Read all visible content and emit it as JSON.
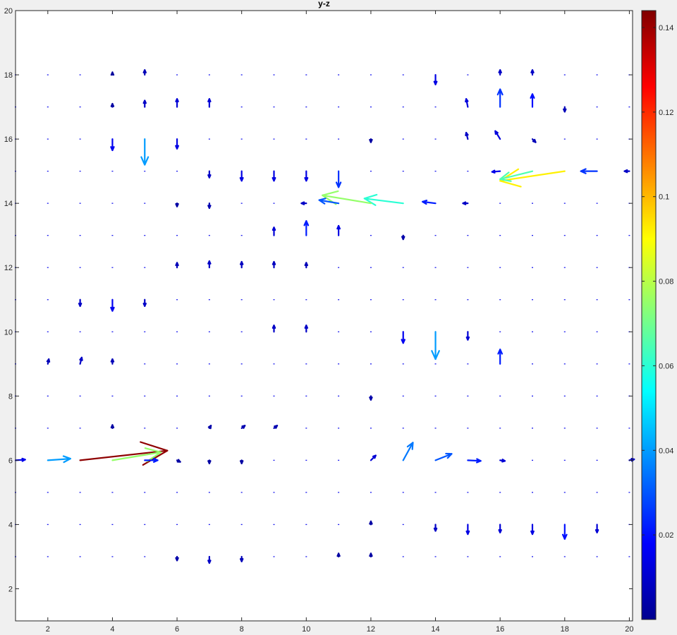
{
  "chart_data": {
    "type": "quiver",
    "title": "y-z",
    "xlabel": "",
    "ylabel": "",
    "xlim": [
      1,
      20.1
    ],
    "ylim": [
      1,
      20
    ],
    "xticks": [
      "2",
      "4",
      "6",
      "8",
      "10",
      "12",
      "14",
      "16",
      "18",
      "20"
    ],
    "yticks": [
      "2",
      "4",
      "6",
      "8",
      "10",
      "12",
      "14",
      "16",
      "18",
      "20"
    ],
    "colorbar": {
      "colormap": "jet",
      "range": [
        0,
        0.144
      ],
      "ticks": [
        "0.02",
        "0.04",
        "0.06",
        "0.08",
        "0.1",
        "0.12",
        "0.14"
      ]
    },
    "arrows": [
      {
        "x": 3,
        "y": 6,
        "u": 2.7,
        "v": 0.3,
        "m": 0.142
      },
      {
        "x": 4,
        "y": 6,
        "u": 1.5,
        "v": 0.25,
        "m": 0.075
      },
      {
        "x": 2,
        "y": 6,
        "u": 0.7,
        "v": 0.05,
        "m": 0.04
      },
      {
        "x": 5,
        "y": 6,
        "u": 0.4,
        "v": 0.0,
        "m": 0.022
      },
      {
        "x": 1,
        "y": 6,
        "u": 0.3,
        "v": 0.02,
        "m": 0.015
      },
      {
        "x": 13,
        "y": 6,
        "u": 0.3,
        "v": 0.55,
        "m": 0.035
      },
      {
        "x": 14,
        "y": 6,
        "u": 0.5,
        "v": 0.2,
        "m": 0.03
      },
      {
        "x": 15,
        "y": 6,
        "u": 0.4,
        "v": -0.02,
        "m": 0.022
      },
      {
        "x": 16,
        "y": 6,
        "u": 0.15,
        "v": -0.02,
        "m": 0.012
      },
      {
        "x": 12,
        "y": 6,
        "u": 0.15,
        "v": 0.15,
        "m": 0.012
      },
      {
        "x": 20,
        "y": 6,
        "u": 0.15,
        "v": 0.03,
        "m": 0.01
      },
      {
        "x": 18,
        "y": 15,
        "u": -2.0,
        "v": -0.3,
        "m": 0.092
      },
      {
        "x": 17,
        "y": 15,
        "u": -1.0,
        "v": -0.25,
        "m": 0.065
      },
      {
        "x": 16,
        "y": 15,
        "u": -0.25,
        "v": -0.02,
        "m": 0.015
      },
      {
        "x": 19,
        "y": 15,
        "u": -0.5,
        "v": 0.0,
        "m": 0.025
      },
      {
        "x": 20,
        "y": 15,
        "u": -0.15,
        "v": 0.0,
        "m": 0.01
      },
      {
        "x": 13,
        "y": 14,
        "u": -1.2,
        "v": 0.15,
        "m": 0.06
      },
      {
        "x": 12,
        "y": 14,
        "u": -1.5,
        "v": 0.25,
        "m": 0.075
      },
      {
        "x": 11,
        "y": 14,
        "u": -0.6,
        "v": 0.1,
        "m": 0.03
      },
      {
        "x": 14,
        "y": 14,
        "u": -0.4,
        "v": 0.05,
        "m": 0.022
      },
      {
        "x": 10,
        "y": 14,
        "u": -0.15,
        "v": 0.0,
        "m": 0.01
      },
      {
        "x": 15,
        "y": 14,
        "u": -0.15,
        "v": 0.0,
        "m": 0.01
      },
      {
        "x": 5,
        "y": 16,
        "u": 0.0,
        "v": -0.8,
        "m": 0.04
      },
      {
        "x": 14,
        "y": 10,
        "u": 0.0,
        "v": -0.85,
        "m": 0.04
      },
      {
        "x": 11,
        "y": 15,
        "u": 0.0,
        "v": -0.5,
        "m": 0.025
      },
      {
        "x": 16,
        "y": 9,
        "u": 0.0,
        "v": 0.45,
        "m": 0.022
      },
      {
        "x": 16,
        "y": 17,
        "u": 0.0,
        "v": 0.55,
        "m": 0.025
      },
      {
        "x": 17,
        "y": 17,
        "u": 0.0,
        "v": 0.4,
        "m": 0.02
      },
      {
        "x": 15,
        "y": 17,
        "u": -0.05,
        "v": 0.25,
        "m": 0.013
      },
      {
        "x": 16,
        "y": 16,
        "u": -0.15,
        "v": 0.25,
        "m": 0.013
      },
      {
        "x": 15,
        "y": 16,
        "u": -0.05,
        "v": 0.2,
        "m": 0.01
      },
      {
        "x": 17,
        "y": 16,
        "u": 0.1,
        "v": -0.1,
        "m": 0.008
      },
      {
        "x": 14,
        "y": 18,
        "u": 0.0,
        "v": -0.3,
        "m": 0.014
      },
      {
        "x": 16,
        "y": 18,
        "u": 0.0,
        "v": 0.15,
        "m": 0.01
      },
      {
        "x": 17,
        "y": 18,
        "u": 0.0,
        "v": 0.15,
        "m": 0.01
      },
      {
        "x": 18,
        "y": 17,
        "u": 0.0,
        "v": -0.15,
        "m": 0.008
      },
      {
        "x": 5,
        "y": 18,
        "u": 0.0,
        "v": 0.15,
        "m": 0.008
      },
      {
        "x": 4,
        "y": 16,
        "u": 0.0,
        "v": -0.35,
        "m": 0.016
      },
      {
        "x": 6,
        "y": 16,
        "u": 0.0,
        "v": -0.3,
        "m": 0.014
      },
      {
        "x": 6,
        "y": 17,
        "u": 0.0,
        "v": 0.25,
        "m": 0.012
      },
      {
        "x": 7,
        "y": 17,
        "u": 0.0,
        "v": 0.25,
        "m": 0.012
      },
      {
        "x": 5,
        "y": 17,
        "u": 0.0,
        "v": 0.2,
        "m": 0.01
      },
      {
        "x": 8,
        "y": 15,
        "u": 0.0,
        "v": -0.3,
        "m": 0.014
      },
      {
        "x": 9,
        "y": 15,
        "u": 0.0,
        "v": -0.3,
        "m": 0.014
      },
      {
        "x": 10,
        "y": 15,
        "u": 0.0,
        "v": -0.3,
        "m": 0.014
      },
      {
        "x": 7,
        "y": 15,
        "u": 0.0,
        "v": -0.2,
        "m": 0.01
      },
      {
        "x": 10,
        "y": 13,
        "u": 0.0,
        "v": 0.45,
        "m": 0.022
      },
      {
        "x": 11,
        "y": 13,
        "u": 0.0,
        "v": 0.3,
        "m": 0.014
      },
      {
        "x": 9,
        "y": 13,
        "u": 0.0,
        "v": 0.25,
        "m": 0.012
      },
      {
        "x": 6,
        "y": 12,
        "u": 0.0,
        "v": 0.15,
        "m": 0.008
      },
      {
        "x": 7,
        "y": 12,
        "u": 0.0,
        "v": 0.2,
        "m": 0.01
      },
      {
        "x": 8,
        "y": 12,
        "u": 0.0,
        "v": 0.18,
        "m": 0.009
      },
      {
        "x": 9,
        "y": 12,
        "u": 0.0,
        "v": 0.18,
        "m": 0.009
      },
      {
        "x": 10,
        "y": 12,
        "u": 0.0,
        "v": 0.15,
        "m": 0.008
      },
      {
        "x": 4,
        "y": 11,
        "u": 0.0,
        "v": -0.35,
        "m": 0.016
      },
      {
        "x": 3,
        "y": 11,
        "u": 0.0,
        "v": -0.2,
        "m": 0.01
      },
      {
        "x": 5,
        "y": 11,
        "u": 0.0,
        "v": -0.2,
        "m": 0.01
      },
      {
        "x": 13,
        "y": 10,
        "u": 0.0,
        "v": -0.35,
        "m": 0.016
      },
      {
        "x": 15,
        "y": 10,
        "u": 0.0,
        "v": -0.25,
        "m": 0.012
      },
      {
        "x": 9,
        "y": 10,
        "u": 0.0,
        "v": 0.2,
        "m": 0.01
      },
      {
        "x": 10,
        "y": 10,
        "u": 0.0,
        "v": 0.2,
        "m": 0.01
      },
      {
        "x": 3,
        "y": 9,
        "u": 0.05,
        "v": 0.2,
        "m": 0.01
      },
      {
        "x": 2,
        "y": 9,
        "u": 0.03,
        "v": 0.15,
        "m": 0.008
      },
      {
        "x": 4,
        "y": 9,
        "u": 0.0,
        "v": 0.15,
        "m": 0.008
      },
      {
        "x": 14,
        "y": 4,
        "u": 0.0,
        "v": -0.2,
        "m": 0.01
      },
      {
        "x": 15,
        "y": 4,
        "u": 0.0,
        "v": -0.3,
        "m": 0.014
      },
      {
        "x": 16,
        "y": 4,
        "u": 0.0,
        "v": -0.25,
        "m": 0.012
      },
      {
        "x": 17,
        "y": 4,
        "u": 0.0,
        "v": -0.3,
        "m": 0.014
      },
      {
        "x": 18,
        "y": 4,
        "u": 0.0,
        "v": -0.45,
        "m": 0.02
      },
      {
        "x": 19,
        "y": 4,
        "u": 0.0,
        "v": -0.25,
        "m": 0.012
      },
      {
        "x": 6,
        "y": 3,
        "u": 0.0,
        "v": -0.12,
        "m": 0.006
      },
      {
        "x": 7,
        "y": 3,
        "u": 0.0,
        "v": -0.2,
        "m": 0.01
      },
      {
        "x": 8,
        "y": 3,
        "u": 0.0,
        "v": -0.15,
        "m": 0.008
      },
      {
        "x": 8,
        "y": 7,
        "u": 0.1,
        "v": 0.08,
        "m": 0.007
      },
      {
        "x": 9,
        "y": 7,
        "u": 0.1,
        "v": 0.08,
        "m": 0.007
      },
      {
        "x": 7,
        "y": 7,
        "u": 0.05,
        "v": 0.08,
        "m": 0.006
      },
      {
        "x": 12,
        "y": 8,
        "u": 0.0,
        "v": -0.12,
        "m": 0.006
      },
      {
        "x": 4,
        "y": 7,
        "u": 0.0,
        "v": 0.1,
        "m": 0.005
      },
      {
        "x": 6,
        "y": 6,
        "u": 0.1,
        "v": -0.05,
        "m": 0.005
      },
      {
        "x": 7,
        "y": 6,
        "u": 0.0,
        "v": -0.1,
        "m": 0.005
      },
      {
        "x": 8,
        "y": 6,
        "u": 0.0,
        "v": -0.1,
        "m": 0.005
      },
      {
        "x": 13,
        "y": 13,
        "u": 0.0,
        "v": -0.12,
        "m": 0.006
      },
      {
        "x": 4,
        "y": 17,
        "u": 0.0,
        "v": 0.1,
        "m": 0.005
      },
      {
        "x": 4,
        "y": 18,
        "u": 0.0,
        "v": 0.08,
        "m": 0.004
      },
      {
        "x": 12,
        "y": 16,
        "u": 0.0,
        "v": -0.1,
        "m": 0.005
      },
      {
        "x": 6,
        "y": 14,
        "u": 0.0,
        "v": -0.1,
        "m": 0.005
      },
      {
        "x": 7,
        "y": 14,
        "u": 0.0,
        "v": -0.15,
        "m": 0.007
      },
      {
        "x": 11,
        "y": 3,
        "u": 0.0,
        "v": 0.1,
        "m": 0.005
      },
      {
        "x": 12,
        "y": 3,
        "u": 0.0,
        "v": 0.1,
        "m": 0.005
      },
      {
        "x": 12,
        "y": 4,
        "u": 0.0,
        "v": 0.1,
        "m": 0.005
      }
    ]
  }
}
